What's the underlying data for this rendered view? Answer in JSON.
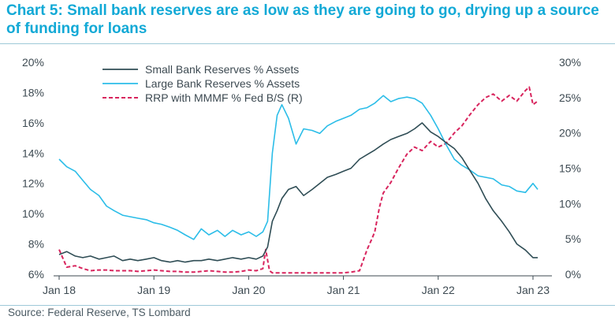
{
  "header": {
    "title": "Chart 5: Small bank reserves are as low as they are going to go, drying up a source of funding for loans"
  },
  "footer": {
    "source": "Source: Federal Reserve, TS Lombard"
  },
  "colors": {
    "small": "#2f4d55",
    "large": "#2bbde8",
    "rrp": "#d8245d",
    "title": "#12a9d6"
  },
  "chart_data": {
    "type": "line",
    "title": "",
    "legend_position": "top-center",
    "grid": false,
    "x_axis": {
      "range": [
        2018.0,
        2023.1
      ],
      "ticks": [
        {
          "label": "Jan 18",
          "value": 2018.0
        },
        {
          "label": "Jan 19",
          "value": 2019.0
        },
        {
          "label": "Jan 20",
          "value": 2020.0
        },
        {
          "label": "Jan 21",
          "value": 2021.0
        },
        {
          "label": "Jan 22",
          "value": 2022.0
        },
        {
          "label": "Jan 23",
          "value": 2023.0
        }
      ]
    },
    "y_left": {
      "range": [
        6,
        20
      ],
      "ticks": [
        {
          "label": "20%",
          "value": 20
        },
        {
          "label": "18%",
          "value": 18
        },
        {
          "label": "16%",
          "value": 16
        },
        {
          "label": "14%",
          "value": 14
        },
        {
          "label": "12%",
          "value": 12
        },
        {
          "label": "10%",
          "value": 10
        },
        {
          "label": "8%",
          "value": 8
        },
        {
          "label": "6%",
          "value": 6
        }
      ]
    },
    "y_right": {
      "range": [
        0,
        30
      ],
      "ticks": [
        {
          "label": "30%",
          "value": 30
        },
        {
          "label": "25%",
          "value": 25
        },
        {
          "label": "20%",
          "value": 20
        },
        {
          "label": "15%",
          "value": 15
        },
        {
          "label": "10%",
          "value": 10
        },
        {
          "label": "5%",
          "value": 5
        },
        {
          "label": "0%",
          "value": 0
        }
      ]
    },
    "series": [
      {
        "name": "Small Bank Reserves % Assets",
        "axis": "left",
        "color": "#2f4d55",
        "style": "solid",
        "x": [
          2018.0,
          2018.08,
          2018.17,
          2018.25,
          2018.33,
          2018.42,
          2018.5,
          2018.58,
          2018.67,
          2018.75,
          2018.83,
          2018.92,
          2019.0,
          2019.08,
          2019.17,
          2019.25,
          2019.33,
          2019.42,
          2019.5,
          2019.58,
          2019.67,
          2019.75,
          2019.83,
          2019.92,
          2020.0,
          2020.08,
          2020.15,
          2020.2,
          2020.25,
          2020.3,
          2020.35,
          2020.42,
          2020.5,
          2020.58,
          2020.67,
          2020.75,
          2020.83,
          2020.92,
          2021.0,
          2021.08,
          2021.17,
          2021.25,
          2021.33,
          2021.42,
          2021.5,
          2021.58,
          2021.67,
          2021.75,
          2021.83,
          2021.92,
          2022.0,
          2022.08,
          2022.17,
          2022.25,
          2022.33,
          2022.42,
          2022.5,
          2022.58,
          2022.67,
          2022.75,
          2022.83,
          2022.92,
          2023.0,
          2023.05
        ],
        "values": [
          7.3,
          7.5,
          7.2,
          7.1,
          7.2,
          7.0,
          7.1,
          7.2,
          6.9,
          7.0,
          6.9,
          7.0,
          7.1,
          6.9,
          6.8,
          6.9,
          6.8,
          6.9,
          6.9,
          7.0,
          6.9,
          7.0,
          7.1,
          7.0,
          7.1,
          7.0,
          7.2,
          7.8,
          9.5,
          10.2,
          11.0,
          11.6,
          11.8,
          11.2,
          11.6,
          12.0,
          12.4,
          12.6,
          12.8,
          13.0,
          13.6,
          13.9,
          14.2,
          14.6,
          14.9,
          15.1,
          15.3,
          15.6,
          16.0,
          15.4,
          15.1,
          14.7,
          14.3,
          13.7,
          12.9,
          12.0,
          11.0,
          10.2,
          9.5,
          8.8,
          8.0,
          7.6,
          7.1,
          7.1
        ]
      },
      {
        "name": "Large Bank Reserves % Assets",
        "axis": "left",
        "color": "#2bbde8",
        "style": "solid",
        "x": [
          2018.0,
          2018.08,
          2018.17,
          2018.25,
          2018.33,
          2018.42,
          2018.5,
          2018.58,
          2018.67,
          2018.75,
          2018.83,
          2018.92,
          2019.0,
          2019.08,
          2019.17,
          2019.25,
          2019.33,
          2019.42,
          2019.5,
          2019.58,
          2019.67,
          2019.75,
          2019.83,
          2019.92,
          2020.0,
          2020.08,
          2020.15,
          2020.2,
          2020.25,
          2020.3,
          2020.35,
          2020.42,
          2020.5,
          2020.58,
          2020.67,
          2020.75,
          2020.83,
          2020.92,
          2021.0,
          2021.08,
          2021.17,
          2021.25,
          2021.33,
          2021.42,
          2021.5,
          2021.58,
          2021.67,
          2021.75,
          2021.83,
          2021.92,
          2022.0,
          2022.08,
          2022.17,
          2022.25,
          2022.33,
          2022.42,
          2022.5,
          2022.58,
          2022.67,
          2022.75,
          2022.83,
          2022.92,
          2023.0,
          2023.05
        ],
        "values": [
          13.6,
          13.1,
          12.8,
          12.2,
          11.6,
          11.2,
          10.5,
          10.2,
          9.9,
          9.8,
          9.7,
          9.6,
          9.4,
          9.3,
          9.1,
          8.9,
          8.6,
          8.3,
          9.0,
          8.6,
          8.9,
          8.5,
          8.9,
          8.6,
          8.8,
          8.5,
          8.8,
          9.5,
          14.0,
          16.5,
          17.2,
          16.3,
          14.6,
          15.6,
          15.5,
          15.3,
          15.8,
          16.1,
          16.3,
          16.5,
          16.9,
          17.0,
          17.3,
          17.8,
          17.4,
          17.6,
          17.7,
          17.6,
          17.3,
          16.5,
          15.6,
          14.6,
          13.6,
          13.2,
          12.9,
          12.5,
          12.4,
          12.3,
          11.9,
          11.8,
          11.5,
          11.4,
          12.0,
          11.6
        ]
      },
      {
        "name": "RRP with MMMF % Fed B/S (R)",
        "axis": "right",
        "color": "#d8245d",
        "style": "dashed",
        "x": [
          2018.0,
          2018.08,
          2018.17,
          2018.25,
          2018.33,
          2018.42,
          2018.5,
          2018.58,
          2018.67,
          2018.75,
          2018.83,
          2018.92,
          2019.0,
          2019.08,
          2019.17,
          2019.25,
          2019.33,
          2019.42,
          2019.5,
          2019.58,
          2019.67,
          2019.75,
          2019.83,
          2019.92,
          2020.0,
          2020.08,
          2020.15,
          2020.18,
          2020.22,
          2020.25,
          2020.3,
          2020.42,
          2020.5,
          2020.58,
          2020.67,
          2020.75,
          2020.83,
          2020.92,
          2021.0,
          2021.08,
          2021.17,
          2021.25,
          2021.3,
          2021.33,
          2021.38,
          2021.42,
          2021.5,
          2021.58,
          2021.67,
          2021.75,
          2021.83,
          2021.92,
          2022.0,
          2022.08,
          2022.17,
          2022.25,
          2022.33,
          2022.42,
          2022.5,
          2022.58,
          2022.67,
          2022.75,
          2022.83,
          2022.92,
          2022.96,
          2023.0,
          2023.05
        ],
        "values": [
          3.5,
          1.0,
          1.2,
          0.8,
          0.5,
          0.6,
          0.6,
          0.5,
          0.5,
          0.5,
          0.4,
          0.5,
          0.6,
          0.5,
          0.4,
          0.4,
          0.3,
          0.3,
          0.4,
          0.5,
          0.4,
          0.3,
          0.3,
          0.4,
          0.6,
          0.5,
          0.8,
          3.5,
          0.5,
          0.2,
          0.2,
          0.2,
          0.2,
          0.2,
          0.2,
          0.2,
          0.2,
          0.2,
          0.2,
          0.3,
          0.5,
          3.5,
          5.0,
          6.0,
          9.5,
          11.5,
          13.0,
          15.0,
          17.0,
          18.0,
          17.5,
          18.8,
          18.0,
          18.5,
          20.0,
          21.0,
          22.5,
          24.0,
          25.0,
          25.5,
          24.5,
          25.3,
          24.5,
          26.0,
          26.5,
          24.0,
          24.5
        ]
      }
    ]
  }
}
